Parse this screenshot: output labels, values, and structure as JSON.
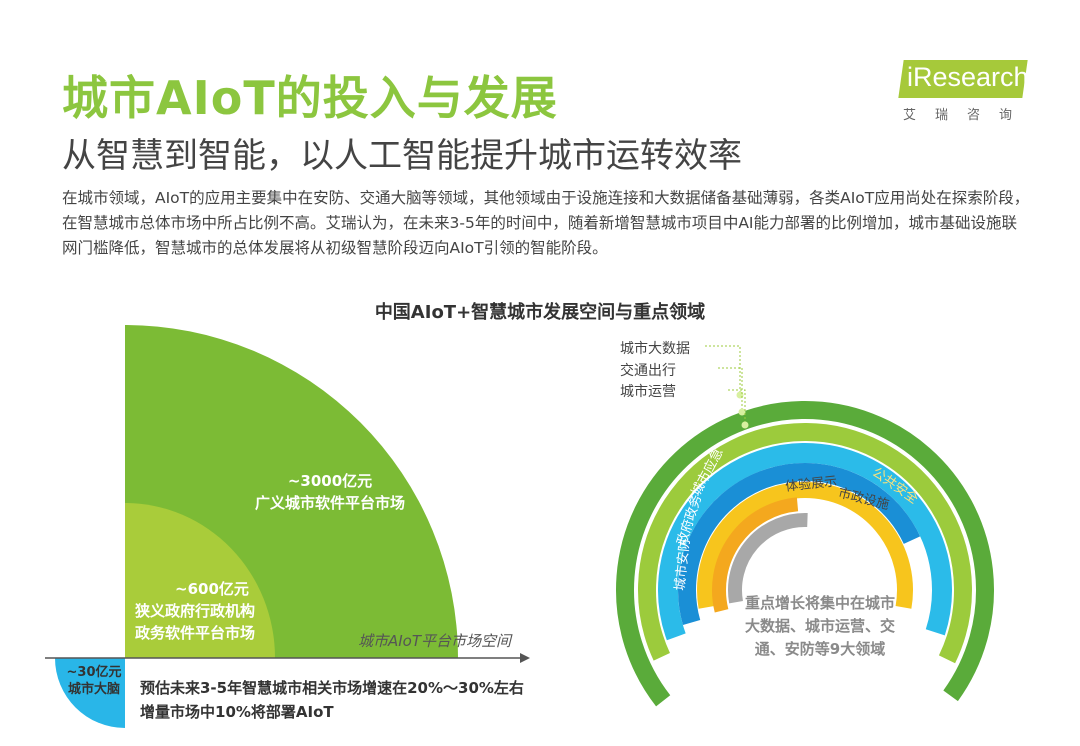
{
  "header": {
    "title": "城市AIoT的投入与发展",
    "subtitle": "从智慧到智能，以人工智能提升城市运转效率",
    "body": "在城市领域，AIoT的应用主要集中在安防、交通大脑等领域，其他领域由于设施连接和大数据储备基础薄弱，各类AIoT应用尚处在探索阶段，在智慧城市总体市场中所占比例不高。艾瑞认为，在未来3-5年的时间中，随着新增智慧城市项目中AI能力部署的比例增加，城市基础设施联网门槛降低，智慧城市的总体发展将从初级智慧阶段迈向AIoT引领的智能阶段。"
  },
  "logo": {
    "text": "iResearch",
    "cn": "艾瑞咨询",
    "color": "#a6c93a"
  },
  "chart_title": "中国AIoT+智慧城市发展空间与重点领域",
  "left_diagram": {
    "large": {
      "value": "~3000亿元",
      "label": "广义城市软件平台市场",
      "color": "#7cbb35"
    },
    "medium": {
      "value": "~600亿元",
      "label1": "狭义政府行政机构",
      "label2": "政务软件平台市场",
      "color": "#a9cc3a"
    },
    "small": {
      "value": "~30亿元",
      "label": "城市大脑",
      "color": "#29b6e8"
    },
    "axis_label": "城市AIoT平台市场空间",
    "note1": "预估未来3-5年智慧城市相关市场增速在20%～30%左右",
    "note2": "增量市场中10%将部署AIoT"
  },
  "right_diagram": {
    "callouts": [
      "城市大数据",
      "交通出行",
      "城市运营"
    ],
    "arc_labels": {
      "emergency": "城市应急",
      "gov": "政府政务",
      "security": "城市安防",
      "experience": "体验展示",
      "municipal": "市政设施",
      "yellow": "公共安全"
    },
    "summary": [
      "重点增长将集中在城市",
      "大数据、城市运营、交",
      "通、安防等9大领域"
    ],
    "colors": {
      "dark_green": "#5aab3a",
      "light_green": "#9ccb3c",
      "cyan": "#2bbbe9",
      "blue": "#1a8fd6",
      "yellow": "#f7c51d",
      "orange": "#f4a81e",
      "gray": "#a8a8a8"
    }
  }
}
